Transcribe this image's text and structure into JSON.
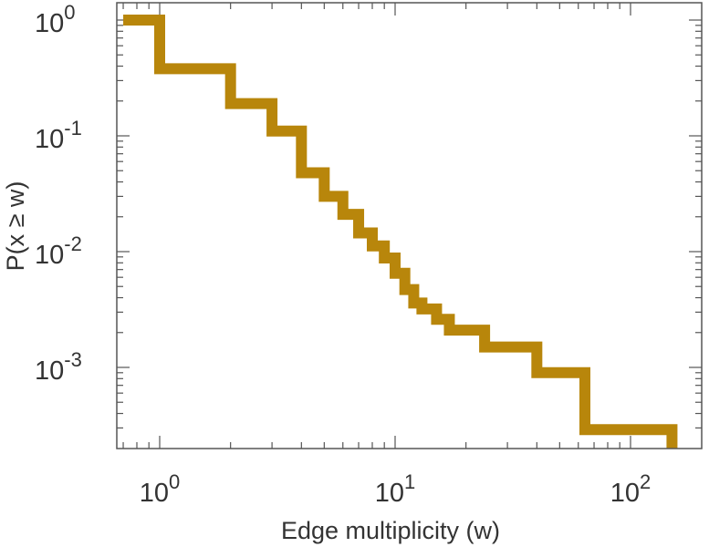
{
  "chart_data": {
    "type": "line",
    "style": "step-ccdf",
    "xlabel": "Edge multiplicity (w)",
    "ylabel": "P(x ≥ w)",
    "xscale": "log",
    "yscale": "log",
    "xlim": [
      0.7,
      170
    ],
    "ylim": [
      0.00022,
      1.35
    ],
    "x_ticks": [
      {
        "value": 1,
        "base": "10",
        "exp": "0"
      },
      {
        "value": 10,
        "base": "10",
        "exp": "1"
      },
      {
        "value": 100,
        "base": "10",
        "exp": "2"
      }
    ],
    "y_ticks": [
      {
        "value": 1,
        "base": "10",
        "exp": "0"
      },
      {
        "value": 0.1,
        "base": "10",
        "exp": "-1"
      },
      {
        "value": 0.01,
        "base": "10",
        "exp": "-2"
      },
      {
        "value": 0.001,
        "base": "10",
        "exp": "-3"
      }
    ],
    "grid": false,
    "legend": "none",
    "series": [
      {
        "color": "#b8860b",
        "x": [
          0.7,
          1,
          2,
          3,
          4,
          5,
          6,
          7,
          8,
          9,
          10,
          11,
          12,
          13,
          15,
          17,
          19,
          24,
          35,
          40,
          64,
          150
        ],
        "y": [
          1,
          0.38,
          0.19,
          0.11,
          0.048,
          0.03,
          0.021,
          0.0145,
          0.0112,
          0.0088,
          0.0065,
          0.0047,
          0.0036,
          0.0032,
          0.0026,
          0.0021,
          0.0021,
          0.0015,
          0.0015,
          0.0009,
          0.00029,
          0.00022
        ]
      }
    ]
  }
}
